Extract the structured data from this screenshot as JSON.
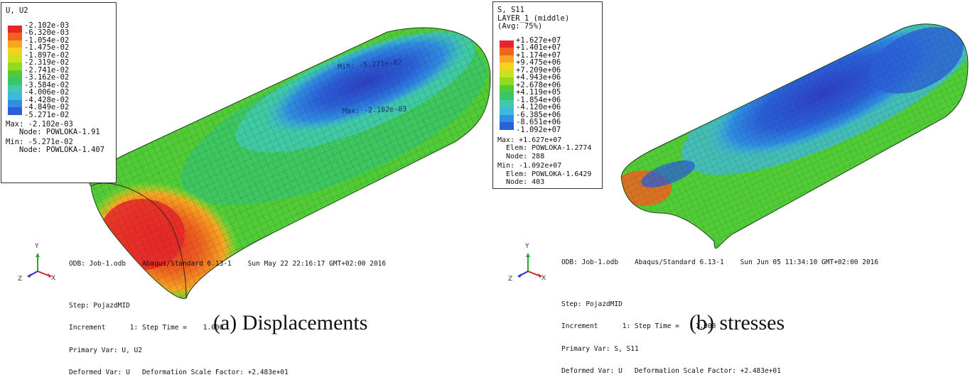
{
  "panel_a": {
    "legend": {
      "title_lines": [
        "U, U2"
      ],
      "colors": [
        "#e8262a",
        "#f0621f",
        "#f7a522",
        "#f6d21f",
        "#c9e21f",
        "#90da22",
        "#51cc36",
        "#3ac46c",
        "#3fcab0",
        "#3fb8e0",
        "#2f8de2",
        "#2a5fd8",
        "#2d3fc2"
      ],
      "values": [
        "-2.102e-03",
        "-6.320e-03",
        "-1.054e-02",
        "-1.475e-02",
        "-1.897e-02",
        "-2.319e-02",
        "-2.741e-02",
        "-3.162e-02",
        "-3.584e-02",
        "-4.006e-02",
        "-4.428e-02",
        "-4.849e-02",
        "-5.271e-02"
      ],
      "stats": [
        "Max: -2.102e-03",
        "   Node: POWLOKA-1.91",
        "Min: -5.271e-02",
        "   Node: POWLOKA-1.407"
      ]
    },
    "annotations": {
      "min_label": "Min: -5.271e-02",
      "max_label": "Max: -2.102e-03"
    },
    "info_lines": [
      "ODB: Job-1.odb    Abaqus/Standard 6.13-1    Sun May 22 22:16:17 GMT+02:00 2016",
      "",
      "Step: PojazdMID",
      "Increment      1: Step Time =    1.000",
      "Primary Var: U, U2",
      "Deformed Var: U   Deformation Scale Factor: +2.483e+01"
    ],
    "triad": {
      "x": "X",
      "y": "Y",
      "z": "Z"
    },
    "caption": "(a) Displacements"
  },
  "panel_b": {
    "legend": {
      "title_lines": [
        "S, S11",
        "LAYER_1 (middle)",
        "(Avg: 75%)"
      ],
      "colors": [
        "#e8262a",
        "#f0621f",
        "#f7a522",
        "#f6d21f",
        "#c9e21f",
        "#90da22",
        "#51cc36",
        "#3ac46c",
        "#3fcab0",
        "#3fb8e0",
        "#2f8de2",
        "#2a5fd8",
        "#2d3fc2"
      ],
      "values": [
        "+1.627e+07",
        "+1.401e+07",
        "+1.174e+07",
        "+9.475e+06",
        "+7.209e+06",
        "+4.943e+06",
        "+2.678e+06",
        "+4.119e+05",
        "-1.854e+06",
        "-4.120e+06",
        "-6.385e+06",
        "-8.651e+06",
        "-1.092e+07"
      ],
      "stats": [
        "Max: +1.627e+07",
        "  Elem: POWLOKA-1.2774",
        "  Node: 288",
        "Min: -1.092e+07",
        "  Elem: POWLOKA-1.6429",
        "  Node: 403"
      ]
    },
    "info_lines": [
      "ODB: Job-1.odb    Abaqus/Standard 6.13-1    Sun Jun 05 11:34:10 GMT+02:00 2016",
      "",
      "Step: PojazdMID",
      "Increment      1: Step Time =    1.000",
      "Primary Var: S, S11",
      "Deformed Var: U   Deformation Scale Factor: +2.483e+01"
    ],
    "triad": {
      "x": "X",
      "y": "Y",
      "z": "Z"
    },
    "caption": "(b) stresses"
  }
}
